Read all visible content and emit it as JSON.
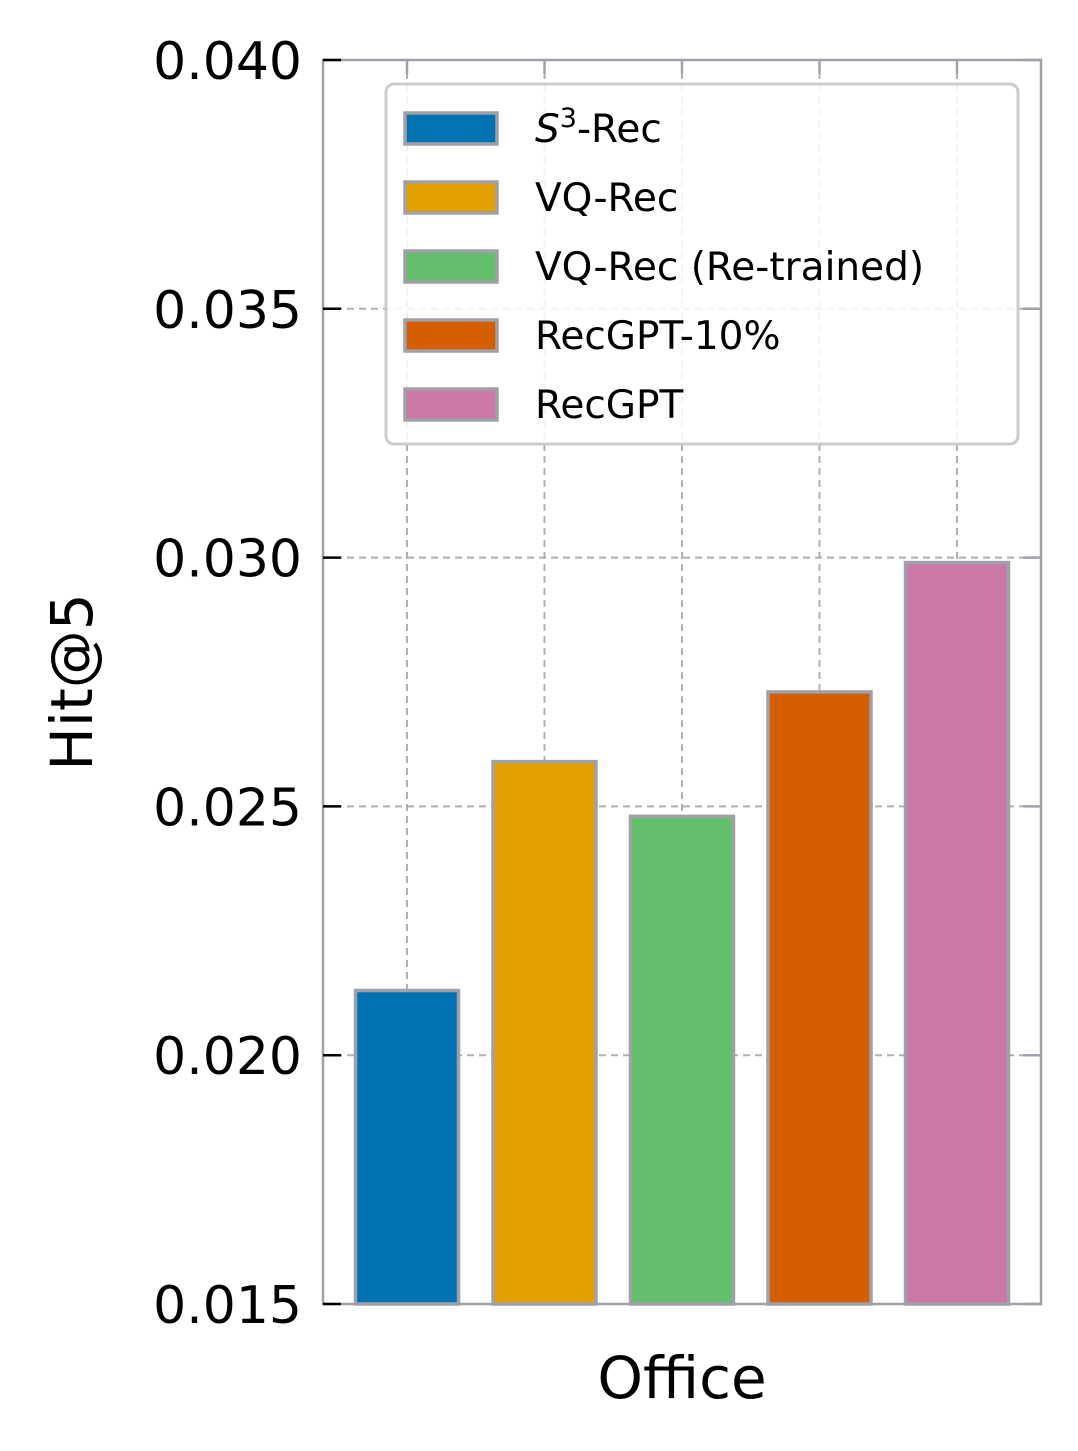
{
  "chart_data": {
    "type": "bar",
    "xlabel": "Office",
    "ylabel": "Hit@5",
    "ylim": [
      0.015,
      0.04
    ],
    "yticks": [
      0.015,
      0.02,
      0.025,
      0.03,
      0.035,
      0.04
    ],
    "ytick_labels": [
      "0.015",
      "0.020",
      "0.025",
      "0.030",
      "0.035",
      "0.040"
    ],
    "grid": true,
    "legend_position": "top-right",
    "series": [
      {
        "name": "-Rec",
        "name_base": "S",
        "name_sup": "3",
        "value": 0.0213,
        "color": "#0173b2"
      },
      {
        "name": "VQ-Rec",
        "value": 0.0259,
        "color": "#e29f00"
      },
      {
        "name": "VQ-Rec (Re-trained)",
        "value": 0.0248,
        "color": "#63bf6b"
      },
      {
        "name": "RecGPT-10%",
        "value": 0.0273,
        "color": "#d55e00"
      },
      {
        "name": "RecGPT",
        "value": 0.0299,
        "color": "#cc78a7"
      }
    ]
  }
}
